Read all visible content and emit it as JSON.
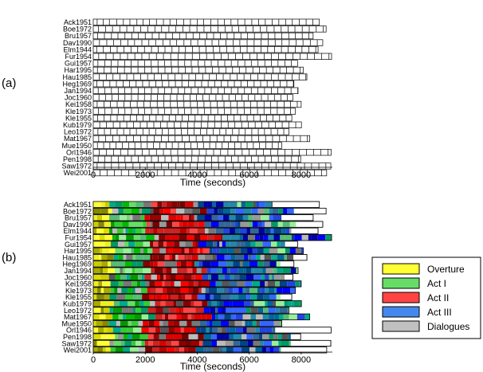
{
  "chart_data": [
    {
      "type": "timeline",
      "panel_label": "(a)",
      "xlabel": "Time (seconds)",
      "xlim": [
        0,
        9200
      ],
      "xticks": [
        0,
        2000,
        4000,
        6000,
        8000
      ],
      "rows": [
        {
          "name": "Ack1951",
          "total": 8700,
          "cuts": [
            150,
            380,
            620,
            900,
            1160,
            1410,
            1680,
            1920,
            2160,
            2430,
            2700,
            2950,
            3210,
            3480,
            3740,
            4000,
            4250,
            4520,
            4790,
            5050,
            5300,
            5560,
            5830,
            6100,
            6360,
            6620,
            6880,
            7140,
            7400,
            7660,
            7930,
            8190,
            8450
          ]
        },
        {
          "name": "Boe1972",
          "total": 8960,
          "cuts": [
            200,
            480,
            740,
            1020,
            1290,
            1560,
            1820,
            2100,
            2370,
            2630,
            2910,
            3180,
            3450,
            3710,
            3990,
            4260,
            4520,
            4800,
            5070,
            5340,
            5600,
            5880,
            6150,
            6420,
            6680,
            6960,
            7230,
            7500,
            7760,
            8040,
            8310,
            8580,
            8850
          ]
        },
        {
          "name": "Bru1957",
          "total": 8460,
          "cuts": [
            170,
            430,
            700,
            950,
            1220,
            1480,
            1740,
            2000,
            2270,
            2530,
            2790,
            3050,
            3320,
            3580,
            3840,
            4100,
            4370,
            4630,
            4890,
            5150,
            5420,
            5680,
            5940,
            6200,
            6470,
            6730,
            6990,
            7250,
            7520,
            7780,
            8040,
            8300
          ]
        },
        {
          "name": "Dav1990",
          "total": 8830,
          "cuts": [
            240,
            520,
            780,
            1060,
            1330,
            1590,
            1870,
            2140,
            2400,
            2680,
            2950,
            3210,
            3490,
            3760,
            4020,
            4300,
            4570,
            4830,
            5110,
            5380,
            5640,
            5920,
            6190,
            6450,
            6730,
            7000,
            7260,
            7540,
            7810,
            8070,
            8350,
            8620
          ]
        },
        {
          "name": "Elm1944",
          "total": 8650,
          "cuts": [
            130,
            390,
            660,
            920,
            1180,
            1450,
            1710,
            1970,
            2240,
            2500,
            2760,
            3030,
            3290,
            3550,
            3820,
            4080,
            4340,
            4610,
            4870,
            5130,
            5400,
            5660,
            5920,
            6190,
            6450,
            6710,
            6980,
            7240,
            7500,
            7770,
            8030,
            8290,
            8560
          ]
        },
        {
          "name": "Fur1954",
          "total": 9170,
          "cuts": [
            210,
            490,
            770,
            1040,
            1320,
            1600,
            1870,
            2150,
            2430,
            2700,
            2980,
            3260,
            3530,
            3810,
            4090,
            4360,
            4640,
            4920,
            5190,
            5470,
            5750,
            6020,
            6300,
            6580,
            6850,
            7130,
            7410,
            7680,
            7960,
            8240,
            8510,
            8790,
            9070
          ]
        },
        {
          "name": "Gui1957",
          "total": 7860,
          "cuts": [
            180,
            440,
            690,
            950,
            1210,
            1460,
            1720,
            1980,
            2230,
            2490,
            2750,
            3000,
            3260,
            3520,
            3770,
            4030,
            4290,
            4540,
            4800,
            5060,
            5310,
            5570,
            5830,
            6080,
            6340,
            6600,
            6850,
            7110,
            7370,
            7620
          ]
        },
        {
          "name": "Har1995",
          "total": 8080,
          "cuts": [
            160,
            420,
            680,
            940,
            1200,
            1460,
            1720,
            1980,
            2240,
            2500,
            2760,
            3020,
            3280,
            3540,
            3800,
            4060,
            4320,
            4580,
            4840,
            5100,
            5360,
            5620,
            5880,
            6140,
            6400,
            6660,
            6920,
            7180,
            7440,
            7700,
            7960
          ]
        },
        {
          "name": "Hau1985",
          "total": 8220,
          "cuts": [
            230,
            500,
            760,
            1030,
            1290,
            1560,
            1820,
            2090,
            2350,
            2620,
            2880,
            3150,
            3410,
            3680,
            3940,
            4210,
            4470,
            4740,
            5000,
            5270,
            5530,
            5800,
            6060,
            6330,
            6590,
            6860,
            7120,
            7390,
            7650,
            7920,
            8180
          ]
        },
        {
          "name": "Heg1969",
          "total": 7720,
          "cuts": [
            140,
            390,
            640,
            890,
            1150,
            1400,
            1650,
            1900,
            2150,
            2410,
            2660,
            2910,
            3160,
            3410,
            3670,
            3920,
            4170,
            4420,
            4670,
            4930,
            5180,
            5430,
            5680,
            5930,
            6190,
            6440,
            6690,
            6940,
            7190,
            7450,
            7700
          ]
        },
        {
          "name": "Jan1994",
          "total": 7880,
          "cuts": [
            190,
            450,
            700,
            960,
            1210,
            1470,
            1730,
            1980,
            2240,
            2490,
            2750,
            3010,
            3260,
            3520,
            3770,
            4030,
            4290,
            4540,
            4800,
            5050,
            5310,
            5570,
            5820,
            6080,
            6330,
            6590,
            6850,
            7100,
            7360,
            7610,
            7870
          ]
        },
        {
          "name": "Joc1960",
          "total": 7680,
          "cuts": [
            220,
            470,
            720,
            970,
            1220,
            1470,
            1720,
            1970,
            2220,
            2470,
            2720,
            2970,
            3220,
            3470,
            3720,
            3970,
            4220,
            4470,
            4720,
            4970,
            5220,
            5470,
            5720,
            5970,
            6220,
            6470,
            6720,
            6970,
            7220,
            7470
          ]
        },
        {
          "name": "Kei1958",
          "total": 8000,
          "cuts": [
            150,
            410,
            660,
            920,
            1180,
            1430,
            1690,
            1950,
            2200,
            2460,
            2720,
            2970,
            3230,
            3490,
            3740,
            4000,
            4260,
            4510,
            4770,
            5030,
            5280,
            5540,
            5800,
            6050,
            6310,
            6570,
            6820,
            7080,
            7340,
            7590,
            7850
          ]
        },
        {
          "name": "Kle1973",
          "total": 7780,
          "cuts": [
            200,
            450,
            710,
            960,
            1220,
            1470,
            1730,
            1980,
            2240,
            2490,
            2750,
            3000,
            3260,
            3510,
            3770,
            4020,
            4280,
            4530,
            4790,
            5040,
            5300,
            5550,
            5810,
            6060,
            6320,
            6570,
            6830,
            7080,
            7340,
            7590
          ]
        },
        {
          "name": "Kle1955",
          "total": 7640,
          "cuts": [
            170,
            420,
            670,
            920,
            1170,
            1420,
            1670,
            1920,
            2170,
            2420,
            2670,
            2920,
            3170,
            3420,
            3670,
            3920,
            4170,
            4420,
            4670,
            4920,
            5170,
            5420,
            5670,
            5920,
            6170,
            6420,
            6670,
            6920,
            7170,
            7420
          ]
        },
        {
          "name": "Kub1979",
          "total": 8010,
          "cuts": [
            250,
            510,
            770,
            1030,
            1290,
            1550,
            1810,
            2070,
            2330,
            2590,
            2850,
            3110,
            3370,
            3630,
            3890,
            4150,
            4410,
            4670,
            4930,
            5190,
            5450,
            5710,
            5970,
            6230,
            6490,
            6750,
            7010,
            7270,
            7530,
            7790
          ]
        },
        {
          "name": "Leo1972",
          "total": 7530,
          "cuts": [
            180,
            430,
            670,
            920,
            1170,
            1410,
            1660,
            1910,
            2150,
            2400,
            2650,
            2890,
            3140,
            3390,
            3630,
            3880,
            4130,
            4370,
            4620,
            4870,
            5110,
            5360,
            5610,
            5850,
            6100,
            6350,
            6590,
            6840,
            7090,
            7330
          ]
        },
        {
          "name": "Mat1967",
          "total": 8330,
          "cuts": [
            210,
            480,
            750,
            1010,
            1280,
            1550,
            1820,
            2080,
            2350,
            2620,
            2890,
            3150,
            3420,
            3690,
            3960,
            4220,
            4490,
            4760,
            5030,
            5290,
            5560,
            5830,
            6100,
            6360,
            6630,
            6900,
            7170,
            7430,
            7700,
            7970,
            8240
          ]
        },
        {
          "name": "Mue1950",
          "total": 7250,
          "cuts": [
            160,
            400,
            640,
            880,
            1120,
            1360,
            1600,
            1840,
            2080,
            2320,
            2560,
            2800,
            3040,
            3280,
            3520,
            3760,
            4000,
            4240,
            4480,
            4720,
            4960,
            5200,
            5440,
            5680,
            5920,
            6160,
            6400,
            6640,
            6880,
            7120
          ]
        },
        {
          "name": "Orl1946",
          "total": 9150,
          "cuts": [
            230,
            500,
            780,
            1050,
            1330,
            1600,
            1880,
            2150,
            2430,
            2700,
            2980,
            3250,
            3530,
            3800,
            4080,
            4350,
            4630,
            4900,
            5180,
            5450,
            5730,
            6000,
            6280,
            6550,
            6830,
            7100,
            7380,
            7650,
            7930,
            8200,
            8480,
            8750,
            9030
          ]
        },
        {
          "name": "Pen1998",
          "total": 7980,
          "cuts": [
            190,
            450,
            700,
            960,
            1220,
            1470,
            1730,
            1990,
            2240,
            2500,
            2760,
            3010,
            3270,
            3530,
            3780,
            4040,
            4300,
            4550,
            4810,
            5070,
            5320,
            5580,
            5840,
            6090,
            6350,
            6610,
            6860,
            7120,
            7380,
            7630,
            7890
          ]
        },
        {
          "name": "Saw1972",
          "total": 9140,
          "cuts": [
            150,
            430,
            700,
            980,
            1250,
            1530,
            1800,
            2080,
            2350,
            2630,
            2900,
            3180,
            3450,
            3730,
            4000,
            4280,
            4550,
            4830,
            5100,
            5380,
            5650,
            5930,
            6200,
            6480,
            6750,
            7030,
            7300,
            7580,
            7850,
            8130,
            8400,
            8680,
            8950
          ]
        },
        {
          "name": "Wei2001",
          "total": 8980,
          "cuts": [
            260,
            530,
            810,
            1080,
            1360,
            1630,
            1910,
            2180,
            2460,
            2730,
            3010,
            3280,
            3560,
            3830,
            4110,
            4380,
            4660,
            4930,
            5210,
            5480,
            5760,
            6030,
            6310,
            6580,
            6860,
            7130,
            7410,
            7680,
            7960,
            8230,
            8510,
            8780
          ]
        }
      ]
    },
    {
      "type": "stacked-timeline",
      "panel_label": "(b)",
      "xlabel": "Time (seconds)",
      "xlim": [
        0,
        9200
      ],
      "xticks": [
        0,
        2000,
        4000,
        6000,
        8000
      ],
      "act_boundaries_fraction": [
        0.08,
        0.26,
        0.54,
        0.76
      ],
      "palettes": {
        "overture": [
          "#ffff33",
          "#eeee22",
          "#dddd00",
          "#cccc00",
          "#aaaa00",
          "#888800"
        ],
        "act_i": [
          "#66dd66",
          "#33cc33",
          "#00bb00",
          "#009900",
          "#99ee99",
          "#009966",
          "#00aa88",
          "#55bb77"
        ],
        "act_ii": [
          "#ff0000",
          "#dd0000",
          "#bb0000",
          "#990000",
          "#770000",
          "#ff4444",
          "#cc2222",
          "#880000"
        ],
        "act_iii": [
          "#0000ff",
          "#2244dd",
          "#3366ff",
          "#0000aa",
          "#006699",
          "#2288aa",
          "#336699",
          "#004488"
        ],
        "dialogues": [
          "#bbbbbb",
          "#999999",
          "#777777",
          "#555555"
        ]
      },
      "legend": {
        "position": "right",
        "entries": [
          {
            "label": "Overture",
            "color": "#ffff33"
          },
          {
            "label": "Act I",
            "color": "#66dd66"
          },
          {
            "label": "Act II",
            "color": "#ff4444"
          },
          {
            "label": "Act III",
            "color": "#4488ee"
          },
          {
            "label": "Dialogues",
            "color": "#c0c0c0"
          }
        ]
      },
      "rows": [
        {
          "name": "Ack1951",
          "total": 8700,
          "colored_until": 6900
        },
        {
          "name": "Boe1972",
          "total": 8960,
          "colored_until": 7720
        },
        {
          "name": "Bru1957",
          "total": 8460,
          "colored_until": 7240
        },
        {
          "name": "Dav1990",
          "total": 8830,
          "colored_until": 7800
        },
        {
          "name": "Elm1944",
          "total": 8650,
          "colored_until": 7620
        },
        {
          "name": "Fur1954",
          "total": 9170,
          "colored_until": 9170
        },
        {
          "name": "Gui1957",
          "total": 7860,
          "colored_until": 7380
        },
        {
          "name": "Har1995",
          "total": 8080,
          "colored_until": 8080
        },
        {
          "name": "Hau1985",
          "total": 8220,
          "colored_until": 7700
        },
        {
          "name": "Heg1969",
          "total": 7720,
          "colored_until": 7200
        },
        {
          "name": "Jan1994",
          "total": 7880,
          "colored_until": 7880
        },
        {
          "name": "Joc1960",
          "total": 7680,
          "colored_until": 7360
        },
        {
          "name": "Kei1958",
          "total": 8000,
          "colored_until": 8000
        },
        {
          "name": "Kle1973",
          "total": 7780,
          "colored_until": 7780
        },
        {
          "name": "Kle1955",
          "total": 7640,
          "colored_until": 7200
        },
        {
          "name": "Kub1979",
          "total": 8010,
          "colored_until": 8010
        },
        {
          "name": "Leo1972",
          "total": 7530,
          "colored_until": 7530
        },
        {
          "name": "Mat1967",
          "total": 8330,
          "colored_until": 8330
        },
        {
          "name": "Mue1950",
          "total": 7250,
          "colored_until": 7250
        },
        {
          "name": "Orl1946",
          "total": 9150,
          "colored_until": 7000
        },
        {
          "name": "Pen1998",
          "total": 7980,
          "colored_until": 7600
        },
        {
          "name": "Saw1972",
          "total": 9140,
          "colored_until": 7600
        },
        {
          "name": "Wei2001",
          "total": 8980,
          "colored_until": 7220
        }
      ]
    }
  ]
}
